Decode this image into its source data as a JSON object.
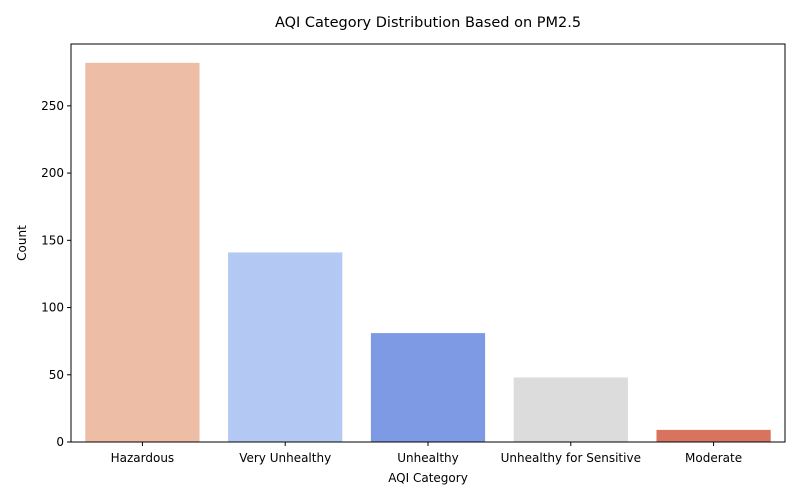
{
  "chart_data": {
    "type": "bar",
    "title": "AQI Category Distribution Based on PM2.5",
    "xlabel": "AQI Category",
    "ylabel": "Count",
    "categories": [
      "Hazardous",
      "Very Unhealthy",
      "Unhealthy",
      "Unhealthy for Sensitive",
      "Moderate"
    ],
    "values": [
      282,
      141,
      81,
      48,
      9
    ],
    "colors": [
      "#edbda6",
      "#b3c9f4",
      "#7f9ae5",
      "#dcdcdc",
      "#d8735f"
    ],
    "ylim": [
      0,
      296
    ],
    "yticks": [
      0,
      50,
      100,
      150,
      200,
      250
    ],
    "grid": false,
    "legend": "none"
  }
}
